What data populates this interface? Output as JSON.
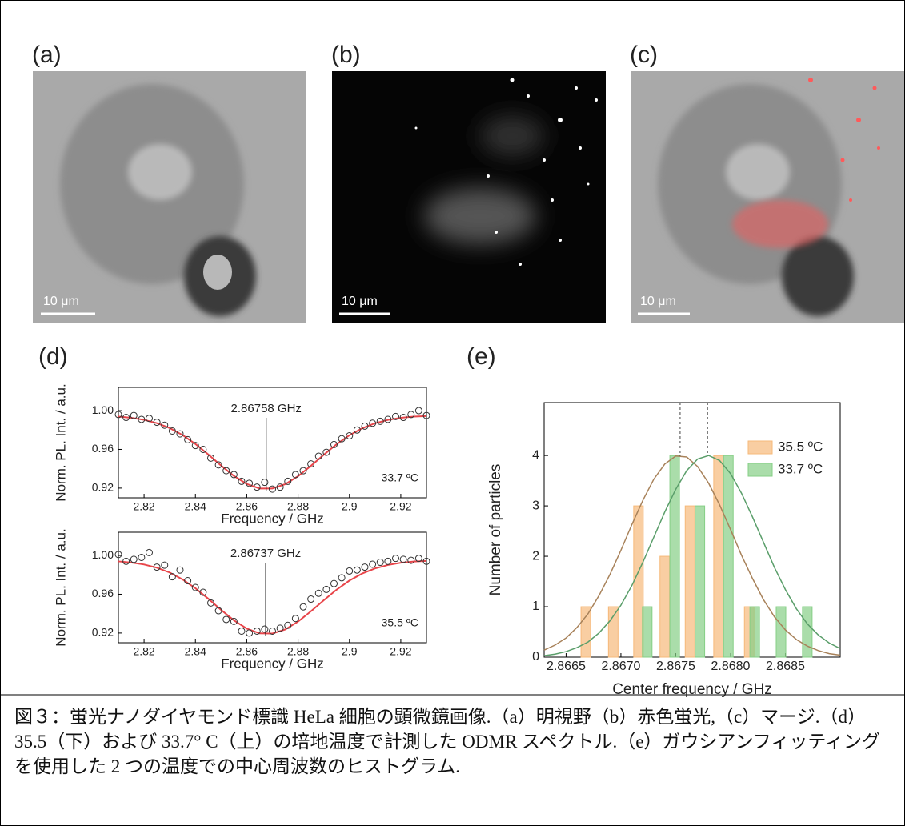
{
  "panels": [
    "(a)",
    "(b)",
    "(c)",
    "(d)",
    "(e)"
  ],
  "scale_bar_labels": [
    "10 μm",
    "10 μm",
    "10 μm"
  ],
  "caption": "図３：蛍光ナノダイヤモンド標識 HeLa 細胞の顕微鏡画像.（a）明視野（b）赤色蛍光,（c）マージ.（d）35.5（下）および 33.7° C（上）の培地温度で計測した ODMR スペクトル.（e）ガウシアンフィッティングを使用した 2 つの温度での中心周波数のヒストグラム.",
  "chart_data": [
    {
      "type": "scatter",
      "x_label": "Frequency / GHz",
      "y_label": "Norm. PL. Int. / a.u.",
      "xlim": [
        2.81,
        2.93
      ],
      "ylim": [
        0.91,
        1.024
      ],
      "xticks": [
        2.82,
        2.84,
        2.86,
        2.88,
        2.9,
        2.92
      ],
      "yticks": [
        0.92,
        0.96,
        {
          "value": 1,
          "label": "1.00"
        }
      ],
      "annotation": "2.86758 GHz",
      "marker_x": 2.86758,
      "note": "33.7 ºC",
      "points": {
        "color": "#333333",
        "x": [
          2.81,
          2.813,
          2.816,
          2.819,
          2.822,
          2.825,
          2.828,
          2.831,
          2.834,
          2.837,
          2.84,
          2.843,
          2.846,
          2.849,
          2.852,
          2.855,
          2.858,
          2.861,
          2.864,
          2.867,
          2.87,
          2.873,
          2.876,
          2.879,
          2.882,
          2.885,
          2.888,
          2.891,
          2.894,
          2.897,
          2.9,
          2.903,
          2.906,
          2.909,
          2.912,
          2.915,
          2.918,
          2.921,
          2.924,
          2.927,
          2.93
        ],
        "values": [
          0.996,
          0.993,
          0.995,
          0.991,
          0.992,
          0.988,
          0.985,
          0.979,
          0.976,
          0.97,
          0.964,
          0.96,
          0.951,
          0.944,
          0.938,
          0.934,
          0.927,
          0.925,
          0.921,
          0.926,
          0.919,
          0.921,
          0.927,
          0.934,
          0.938,
          0.945,
          0.953,
          0.957,
          0.965,
          0.971,
          0.974,
          0.98,
          0.984,
          0.987,
          0.989,
          0.991,
          0.994,
          0.993,
          0.996,
          1.0,
          0.995
        ]
      },
      "fit": {
        "color": "#e8454a",
        "x": [
          2.81,
          2.815,
          2.82,
          2.825,
          2.83,
          2.835,
          2.84,
          2.845,
          2.85,
          2.855,
          2.86,
          2.865,
          2.87,
          2.875,
          2.88,
          2.885,
          2.89,
          2.895,
          2.9,
          2.905,
          2.91,
          2.915,
          2.92,
          2.925,
          2.93
        ],
        "values": [
          0.9938,
          0.9926,
          0.9905,
          0.9871,
          0.982,
          0.9748,
          0.9656,
          0.9548,
          0.9433,
          0.9326,
          0.9243,
          0.9196,
          0.9196,
          0.9241,
          0.9323,
          0.943,
          0.9544,
          0.9653,
          0.9746,
          0.9818,
          0.987,
          0.9904,
          0.9926,
          0.9938,
          0.9944
        ]
      }
    },
    {
      "type": "scatter",
      "x_label": "Frequency / GHz",
      "y_label": "Norm. PL. Int. / a.u.",
      "xlim": [
        2.81,
        2.93
      ],
      "ylim": [
        0.91,
        1.024
      ],
      "xticks": [
        2.82,
        2.84,
        2.86,
        2.88,
        2.9,
        2.92
      ],
      "yticks": [
        0.92,
        0.96,
        {
          "value": 1,
          "label": "1.00"
        }
      ],
      "annotation": "2.86737 GHz",
      "marker_x": 2.86737,
      "note": "35.5 ºC",
      "points": {
        "color": "#333333",
        "x": [
          2.81,
          2.813,
          2.816,
          2.819,
          2.822,
          2.825,
          2.828,
          2.831,
          2.834,
          2.837,
          2.84,
          2.843,
          2.846,
          2.849,
          2.852,
          2.855,
          2.858,
          2.861,
          2.864,
          2.867,
          2.87,
          2.873,
          2.876,
          2.879,
          2.882,
          2.885,
          2.888,
          2.891,
          2.894,
          2.897,
          2.9,
          2.903,
          2.906,
          2.909,
          2.912,
          2.915,
          2.918,
          2.921,
          2.924,
          2.927,
          2.93
        ],
        "values": [
          1.001,
          0.994,
          0.996,
          0.998,
          1.003,
          0.988,
          0.99,
          0.978,
          0.985,
          0.974,
          0.967,
          0.962,
          0.951,
          0.943,
          0.934,
          0.932,
          0.922,
          0.92,
          0.922,
          0.924,
          0.922,
          0.925,
          0.928,
          0.935,
          0.947,
          0.955,
          0.961,
          0.965,
          0.971,
          0.977,
          0.984,
          0.985,
          0.988,
          0.991,
          0.993,
          0.994,
          0.997,
          0.996,
          0.995,
          0.997,
          0.994
        ]
      },
      "fit": {
        "color": "#e8454a",
        "x": [
          2.81,
          2.815,
          2.82,
          2.825,
          2.83,
          2.835,
          2.84,
          2.845,
          2.85,
          2.855,
          2.86,
          2.865,
          2.87,
          2.875,
          2.88,
          2.885,
          2.89,
          2.895,
          2.9,
          2.905,
          2.91,
          2.915,
          2.92,
          2.925,
          2.93
        ],
        "values": [
          0.9939,
          0.9927,
          0.9907,
          0.9874,
          0.9824,
          0.9753,
          0.9662,
          0.9554,
          0.9439,
          0.9331,
          0.9246,
          0.9197,
          0.9195,
          0.9237,
          0.9318,
          0.9424,
          0.9538,
          0.9647,
          0.9741,
          0.9814,
          0.9867,
          0.9902,
          0.9925,
          0.9937,
          0.9944
        ]
      }
    },
    {
      "type": "bar",
      "x_label": "Center frequency / GHz",
      "y_label": "Number of particles",
      "xlim": [
        2.8663,
        2.869
      ],
      "ylim": [
        0,
        5.05
      ],
      "xticks": [
        2.8665,
        {
          "value": 2.867,
          "label": "2.8670"
        },
        2.8675,
        {
          "value": 2.868,
          "label": "2.8680"
        },
        2.8685
      ],
      "yticks": [
        0,
        1,
        2,
        3,
        4
      ],
      "series": [
        {
          "name": "35.5 ºC",
          "color": "#f6b97a",
          "x": [
            2.86668,
            2.86693,
            2.86716,
            2.8674,
            2.86763,
            2.86789,
            2.86817
          ],
          "values": [
            1,
            1,
            3,
            2,
            3,
            4,
            1
          ],
          "center": 2.86754,
          "fit": {
            "color": "#a8825a",
            "x": [
              2.8663,
              2.8664,
              2.8665,
              2.8666,
              2.8667,
              2.8668,
              2.8669,
              2.867,
              2.8671,
              2.8672,
              2.8673,
              2.8674,
              2.8675,
              2.8676,
              2.8677,
              2.8678,
              2.8679,
              2.868,
              2.8681,
              2.8682,
              2.8683,
              2.8684,
              2.8685,
              2.8686,
              2.8687,
              2.8688,
              2.8689,
              2.869
            ],
            "values": [
              0.14,
              0.24,
              0.38,
              0.59,
              0.86,
              1.22,
              1.64,
              2.12,
              2.63,
              3.11,
              3.53,
              3.83,
              3.99,
              3.97,
              3.78,
              3.45,
              3.02,
              2.53,
              2.02,
              1.56,
              1.14,
              0.8,
              0.54,
              0.35,
              0.22,
              0.13,
              0.07,
              0.04
            ]
          }
        },
        {
          "name": "33.7 ºC",
          "color": "#86cf86",
          "x": [
            2.86724,
            2.86749,
            2.86772,
            2.86798,
            2.86822,
            2.86846,
            2.8687
          ],
          "values": [
            1,
            4,
            3,
            4,
            1,
            1,
            1
          ],
          "center": 2.86779,
          "fit": {
            "color": "#5a9e6a",
            "x": [
              2.8663,
              2.8664,
              2.8665,
              2.8666,
              2.8667,
              2.8668,
              2.8669,
              2.867,
              2.8671,
              2.8672,
              2.8673,
              2.8674,
              2.8675,
              2.8676,
              2.8677,
              2.8678,
              2.8679,
              2.868,
              2.8681,
              2.8682,
              2.8683,
              2.8684,
              2.8685,
              2.8686,
              2.8687,
              2.8688,
              2.8689,
              2.869
            ],
            "values": [
              0.03,
              0.06,
              0.11,
              0.19,
              0.3,
              0.48,
              0.72,
              1.03,
              1.42,
              1.88,
              2.38,
              2.88,
              3.33,
              3.7,
              3.93,
              4.0,
              3.9,
              3.64,
              3.25,
              2.78,
              2.28,
              1.78,
              1.34,
              0.96,
              0.66,
              0.44,
              0.28,
              0.17
            ]
          }
        }
      ]
    }
  ]
}
